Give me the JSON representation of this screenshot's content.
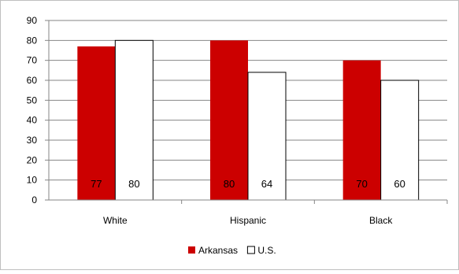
{
  "chart_data": {
    "type": "bar",
    "categories": [
      "White",
      "Hispanic",
      "Black"
    ],
    "series": [
      {
        "name": "Arkansas",
        "color": "#cc0000",
        "values": [
          77,
          80,
          70
        ],
        "data_labels": [
          "77",
          "80",
          "70"
        ]
      },
      {
        "name": "U.S.",
        "color": "#ffffff",
        "values": [
          80,
          64,
          60
        ],
        "data_labels": [
          "80",
          "64",
          "60"
        ]
      }
    ],
    "ylim": [
      0,
      90
    ],
    "yticks": [
      0,
      10,
      20,
      30,
      40,
      50,
      60,
      70,
      80,
      90
    ],
    "grid": true,
    "legend": "bottom",
    "title": "",
    "xlabel": "",
    "ylabel": ""
  }
}
